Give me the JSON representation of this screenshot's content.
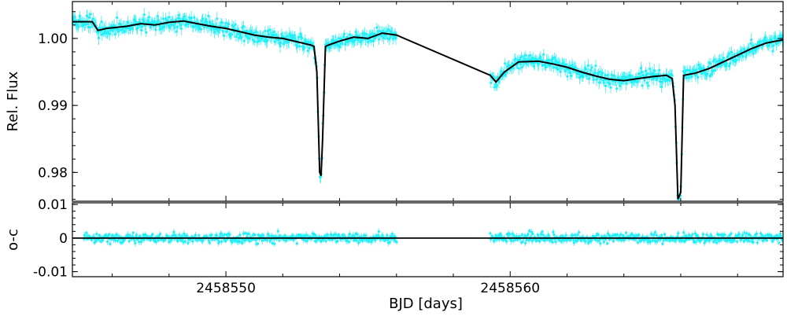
{
  "chart_data": [
    {
      "type": "scatter",
      "panel": "light-curve",
      "xlabel": "",
      "ylabel": "Rel. Flux",
      "xlim": [
        2458544.6,
        2458569.6
      ],
      "ylim": [
        0.9757,
        1.0055
      ],
      "y_ticks": [
        0.98,
        0.99,
        1.0
      ],
      "y_tick_labels": [
        "0.98",
        "0.99",
        "1.00"
      ],
      "grid": false,
      "colors": {
        "data": "#22f0f8",
        "model": "#000000"
      },
      "series": [
        {
          "kind": "data-with-errorbars",
          "segments": [
            [
              2458544.6,
              2458556.0
            ],
            [
              2458559.3,
              2458569.6
            ]
          ],
          "points_per_day": 42,
          "typical_error": 0.0008,
          "scatter": 0.0009
        },
        {
          "kind": "model-line",
          "x": [
            2458544.6,
            2458545.3,
            2458545.5,
            2458545.8,
            2458546.5,
            2458547.0,
            2458547.5,
            2458548.0,
            2458548.5,
            2458549.0,
            2458549.5,
            2458550.0,
            2458550.5,
            2458551.0,
            2458551.5,
            2458552.0,
            2458552.5,
            2458553.0,
            2458553.1,
            2458553.2,
            2458553.3,
            2458553.35,
            2458553.4,
            2458553.5,
            2458553.6,
            2458554.0,
            2458554.5,
            2458555.0,
            2458555.5,
            2458556.0,
            2458559.3,
            2458559.5,
            2458559.8,
            2458560.3,
            2458561.0,
            2458561.5,
            2458562.0,
            2458562.5,
            2458563.0,
            2458563.5,
            2458564.0,
            2458564.5,
            2458565.0,
            2458565.5,
            2458565.7,
            2458565.8,
            2458565.9,
            2458566.0,
            2458566.1,
            2458566.5,
            2458567.0,
            2458567.5,
            2458568.0,
            2458568.5,
            2458569.0,
            2458569.6
          ],
          "y": [
            1.0025,
            1.0025,
            1.0012,
            1.0015,
            1.0018,
            1.0022,
            1.002,
            1.0024,
            1.0026,
            1.0022,
            1.0018,
            1.0015,
            1.001,
            1.0005,
            1.0002,
            1.0,
            0.9995,
            0.999,
            0.9988,
            0.995,
            0.98,
            0.9795,
            0.985,
            0.9988,
            0.999,
            0.9996,
            1.0002,
            1.0,
            1.0008,
            1.0005,
            0.9945,
            0.9935,
            0.995,
            0.9965,
            0.9966,
            0.9962,
            0.9957,
            0.995,
            0.9944,
            0.9939,
            0.9937,
            0.994,
            0.9943,
            0.9945,
            0.994,
            0.99,
            0.976,
            0.977,
            0.9945,
            0.9948,
            0.9955,
            0.9965,
            0.9975,
            0.9985,
            0.9993,
            0.9998
          ]
        }
      ]
    },
    {
      "type": "scatter",
      "panel": "residuals",
      "xlabel": "BJD [days]",
      "ylabel": "o-c",
      "xlim": [
        2458544.6,
        2458569.6
      ],
      "ylim": [
        -0.0115,
        0.0105
      ],
      "x_ticks": [
        2458550,
        2458560
      ],
      "x_tick_labels": [
        "2458550",
        "2458560"
      ],
      "y_ticks": [
        -0.01,
        0,
        0.01
      ],
      "y_tick_labels": [
        "-0.01",
        "0",
        "0.01"
      ],
      "grid": false,
      "zero_line": true,
      "series": [
        {
          "kind": "residuals-with-errorbars",
          "segments": [
            [
              2458545.0,
              2458556.0
            ],
            [
              2458559.3,
              2458569.6
            ]
          ],
          "points_per_day": 42,
          "typical_error": 0.0008,
          "scatter": 0.0012
        }
      ]
    }
  ]
}
